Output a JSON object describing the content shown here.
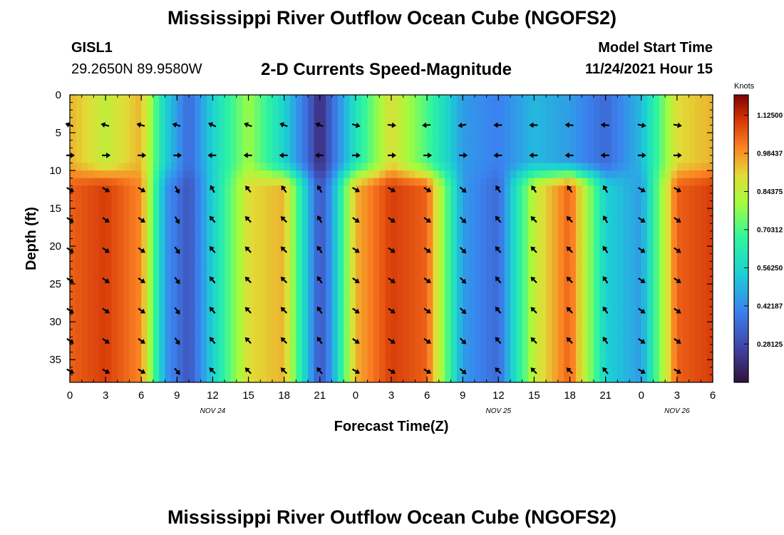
{
  "header": {
    "title": "Mississippi River Outflow Ocean Cube (NGOFS2)",
    "station_id": "GISL1",
    "station_coords": "29.2650N  89.9580W",
    "subtitle": "2-D Currents Speed-Magnitude",
    "model_start_label": "Model Start Time",
    "model_start_value": "11/24/2021 Hour 15"
  },
  "footer": {
    "title": "Mississippi River Outflow Ocean Cube (NGOFS2)"
  },
  "chart_data": {
    "type": "heatmap",
    "title": "2-D Currents Speed-Magnitude",
    "xlabel": "Forecast Time(Z)",
    "ylabel": "Depth (ft)",
    "x_range_hours": [
      0,
      54
    ],
    "y_range_ft": [
      0,
      38
    ],
    "x_ticks": [
      {
        "hour": 0,
        "label": "0"
      },
      {
        "hour": 3,
        "label": "3"
      },
      {
        "hour": 6,
        "label": "6"
      },
      {
        "hour": 9,
        "label": "9"
      },
      {
        "hour": 12,
        "label": "12"
      },
      {
        "hour": 15,
        "label": "15"
      },
      {
        "hour": 18,
        "label": "18"
      },
      {
        "hour": 21,
        "label": "21"
      },
      {
        "hour": 24,
        "label": "0"
      },
      {
        "hour": 27,
        "label": "3"
      },
      {
        "hour": 30,
        "label": "6"
      },
      {
        "hour": 33,
        "label": "9"
      },
      {
        "hour": 36,
        "label": "12"
      },
      {
        "hour": 39,
        "label": "15"
      },
      {
        "hour": 42,
        "label": "18"
      },
      {
        "hour": 45,
        "label": "21"
      },
      {
        "hour": 48,
        "label": "0"
      },
      {
        "hour": 51,
        "label": "3"
      },
      {
        "hour": 54,
        "label": "6"
      }
    ],
    "date_labels": [
      {
        "hour": 12,
        "label": "NOV 24"
      },
      {
        "hour": 36,
        "label": "NOV 25"
      },
      {
        "hour": 51,
        "label": "NOV 26"
      }
    ],
    "y_ticks": [
      {
        "depth": 0,
        "label": "0"
      },
      {
        "depth": 5,
        "label": "5"
      },
      {
        "depth": 10,
        "label": "10"
      },
      {
        "depth": 15,
        "label": "15"
      },
      {
        "depth": 20,
        "label": "20"
      },
      {
        "depth": 25,
        "label": "25"
      },
      {
        "depth": 30,
        "label": "30"
      },
      {
        "depth": 35,
        "label": "35"
      }
    ],
    "colorbar": {
      "unit": "Knots",
      "min": 0.14,
      "max": 1.2,
      "ticks": [
        "0.28125",
        "0.42187",
        "0.56250",
        "0.70312",
        "0.84375",
        "0.98437",
        "1.12500"
      ]
    },
    "field_bands": [
      {
        "depth_from": 0,
        "depth_to": 9,
        "hours": [
          0,
          3,
          6,
          8,
          10,
          12,
          15,
          18,
          20,
          21,
          22,
          24,
          27,
          30,
          33,
          36,
          39,
          42,
          45,
          48,
          51,
          54
        ],
        "speeds": [
          0.95,
          0.85,
          0.95,
          0.55,
          0.35,
          0.55,
          0.8,
          0.55,
          0.35,
          0.2,
          0.35,
          0.6,
          0.9,
          0.7,
          0.45,
          0.4,
          0.5,
          0.45,
          0.35,
          0.5,
          0.9,
          0.95
        ]
      },
      {
        "depth_from": 12,
        "depth_to": 38,
        "hours": [
          0,
          3,
          6,
          8,
          10,
          12,
          15,
          18,
          20,
          21,
          22,
          24,
          27,
          30,
          33,
          36,
          39,
          42,
          45,
          48,
          51,
          54
        ],
        "speeds": [
          1.05,
          1.1,
          1.0,
          0.45,
          0.3,
          0.55,
          0.9,
          0.95,
          0.5,
          0.3,
          0.45,
          0.95,
          1.1,
          1.05,
          0.45,
          0.35,
          0.85,
          1.05,
          0.55,
          0.45,
          1.05,
          1.1
        ]
      }
    ],
    "vector_rows": [
      {
        "depth": 4,
        "hours": [
          0,
          3,
          6,
          9,
          12,
          15,
          18,
          21,
          24,
          27,
          30,
          33,
          36,
          39,
          42,
          45,
          48,
          51
        ],
        "angles": [
          200,
          195,
          195,
          195,
          205,
          200,
          200,
          200,
          15,
          5,
          175,
          170,
          180,
          180,
          185,
          185,
          10,
          10
        ]
      },
      {
        "depth": 8,
        "hours": [
          0,
          3,
          6,
          9,
          12,
          15,
          18,
          21,
          24,
          27,
          30,
          33,
          36,
          39,
          42,
          45,
          48,
          51
        ],
        "angles": [
          0,
          0,
          0,
          0,
          180,
          180,
          180,
          180,
          0,
          0,
          0,
          0,
          180,
          180,
          180,
          180,
          0,
          0
        ]
      },
      {
        "depth": 12.5,
        "hours": [
          0,
          3,
          6,
          9,
          12,
          15,
          18,
          21,
          24,
          27,
          30,
          33,
          36,
          39,
          42,
          45,
          48,
          51
        ],
        "angles": [
          30,
          30,
          30,
          60,
          240,
          230,
          235,
          240,
          30,
          30,
          30,
          40,
          235,
          235,
          235,
          240,
          30,
          30
        ]
      },
      {
        "depth": 16.5,
        "hours": [
          0,
          3,
          6,
          9,
          12,
          15,
          18,
          21,
          24,
          27,
          30,
          33,
          36,
          39,
          42,
          45,
          48,
          51
        ],
        "angles": [
          35,
          35,
          35,
          60,
          230,
          225,
          225,
          240,
          35,
          35,
          35,
          45,
          230,
          225,
          225,
          240,
          35,
          35
        ]
      },
      {
        "depth": 20.5,
        "hours": [
          0,
          3,
          6,
          9,
          12,
          15,
          18,
          21,
          24,
          27,
          30,
          33,
          36,
          39,
          42,
          45,
          48,
          51
        ],
        "angles": [
          35,
          35,
          35,
          55,
          230,
          225,
          225,
          235,
          35,
          35,
          35,
          45,
          230,
          225,
          225,
          235,
          35,
          35
        ]
      },
      {
        "depth": 24.5,
        "hours": [
          0,
          3,
          6,
          9,
          12,
          15,
          18,
          21,
          24,
          27,
          30,
          33,
          36,
          39,
          42,
          45,
          48,
          51
        ],
        "angles": [
          35,
          35,
          35,
          55,
          230,
          225,
          225,
          235,
          35,
          35,
          35,
          45,
          230,
          225,
          225,
          235,
          35,
          35
        ]
      },
      {
        "depth": 28.5,
        "hours": [
          0,
          3,
          6,
          9,
          12,
          15,
          18,
          21,
          24,
          27,
          30,
          33,
          36,
          39,
          42,
          45,
          48,
          51
        ],
        "angles": [
          35,
          35,
          35,
          55,
          230,
          225,
          225,
          235,
          35,
          35,
          35,
          45,
          230,
          225,
          225,
          235,
          35,
          35
        ]
      },
      {
        "depth": 32.5,
        "hours": [
          0,
          3,
          6,
          9,
          12,
          15,
          18,
          21,
          24,
          27,
          30,
          33,
          36,
          39,
          42,
          45,
          48,
          51
        ],
        "angles": [
          35,
          35,
          35,
          55,
          230,
          225,
          225,
          235,
          35,
          35,
          35,
          45,
          230,
          225,
          225,
          235,
          35,
          35
        ]
      },
      {
        "depth": 36.5,
        "hours": [
          0,
          3,
          6,
          9,
          12,
          15,
          18,
          21,
          24,
          27,
          30,
          33,
          36,
          39,
          42,
          45,
          48,
          51
        ],
        "angles": [
          30,
          30,
          30,
          50,
          225,
          225,
          225,
          230,
          30,
          30,
          30,
          40,
          225,
          225,
          225,
          230,
          30,
          30
        ]
      }
    ]
  }
}
